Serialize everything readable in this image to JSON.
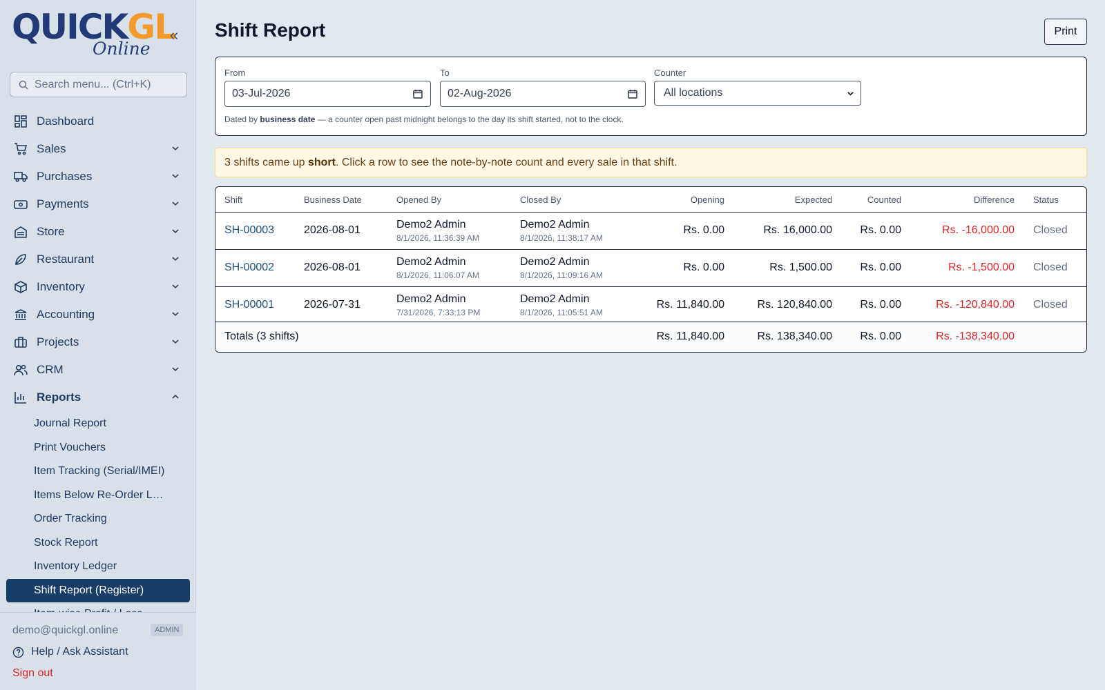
{
  "app": {
    "logo_main_a": "QUICK",
    "logo_main_b": "GL",
    "logo_sub": "Online"
  },
  "sidebar": {
    "search_placeholder": "Search menu... (Ctrl+K)",
    "items": [
      {
        "label": "Dashboard",
        "icon": "dashboard-icon"
      },
      {
        "label": "Sales",
        "icon": "cart-icon"
      },
      {
        "label": "Purchases",
        "icon": "truck-icon"
      },
      {
        "label": "Payments",
        "icon": "banknote-icon"
      },
      {
        "label": "Store",
        "icon": "store-icon"
      },
      {
        "label": "Restaurant",
        "icon": "chef-hat-icon"
      },
      {
        "label": "Inventory",
        "icon": "box-icon"
      },
      {
        "label": "Accounting",
        "icon": "bank-icon"
      },
      {
        "label": "Projects",
        "icon": "briefcase-icon"
      },
      {
        "label": "CRM",
        "icon": "users-icon"
      },
      {
        "label": "Reports",
        "icon": "bar-chart-icon"
      }
    ],
    "reports_sub": [
      "Journal Report",
      "Print Vouchers",
      "Item Tracking (Serial/IMEI)",
      "Items Below Re-Order L…",
      "Order Tracking",
      "Stock Report",
      "Inventory Ledger",
      "Shift Report (Register)",
      "Item-wise Profit / Loss"
    ],
    "user_email": "demo@quickgl.online",
    "role": "ADMIN",
    "help_label": "Help / Ask Assistant",
    "signout_label": "Sign out"
  },
  "page": {
    "title": "Shift Report",
    "print_label": "Print"
  },
  "filters": {
    "from_label": "From",
    "from_value": "03-Jul-2026",
    "to_label": "To",
    "to_value": "02-Aug-2026",
    "counter_label": "Counter",
    "counter_value": "All locations",
    "note_prefix": "Dated by ",
    "note_bold": "business date",
    "note_suffix": " — a counter open past midnight belongs to the day its shift started, not to the clock."
  },
  "alert": {
    "prefix": "3 shifts came up ",
    "bold": "short",
    "suffix": ". Click a row to see the note-by-note count and every sale in that shift."
  },
  "table": {
    "columns": [
      "Shift",
      "Business Date",
      "Opened By",
      "Closed By",
      "Opening",
      "Expected",
      "Counted",
      "Difference",
      "Status"
    ],
    "rows": [
      {
        "shift": "SH-00003",
        "date": "2026-08-01",
        "opened_by": "Demo2 Admin",
        "opened_at": "8/1/2026, 11:36:39 AM",
        "closed_by": "Demo2 Admin",
        "closed_at": "8/1/2026, 11:38:17 AM",
        "opening": "Rs. 0.00",
        "expected": "Rs. 16,000.00",
        "counted": "Rs. 0.00",
        "difference": "Rs. -16,000.00",
        "status": "Closed"
      },
      {
        "shift": "SH-00002",
        "date": "2026-08-01",
        "opened_by": "Demo2 Admin",
        "opened_at": "8/1/2026, 11:06:07 AM",
        "closed_by": "Demo2 Admin",
        "closed_at": "8/1/2026, 11:09:16 AM",
        "opening": "Rs. 0.00",
        "expected": "Rs. 1,500.00",
        "counted": "Rs. 0.00",
        "difference": "Rs. -1,500.00",
        "status": "Closed"
      },
      {
        "shift": "SH-00001",
        "date": "2026-07-31",
        "opened_by": "Demo2 Admin",
        "opened_at": "7/31/2026, 7:33:13 PM",
        "closed_by": "Demo2 Admin",
        "closed_at": "8/1/2026, 11:05:51 AM",
        "opening": "Rs. 11,840.00",
        "expected": "Rs. 120,840.00",
        "counted": "Rs. 0.00",
        "difference": "Rs. -120,840.00",
        "status": "Closed"
      }
    ],
    "totals": {
      "label": "Totals (3 shifts)",
      "opening": "Rs. 11,840.00",
      "expected": "Rs. 138,340.00",
      "counted": "Rs. 0.00",
      "difference": "Rs. -138,340.00"
    }
  },
  "colors": {
    "accent": "#173e66",
    "negative": "#dc2626",
    "logo_blue": "#233a78",
    "logo_orange": "#f29b2c"
  }
}
